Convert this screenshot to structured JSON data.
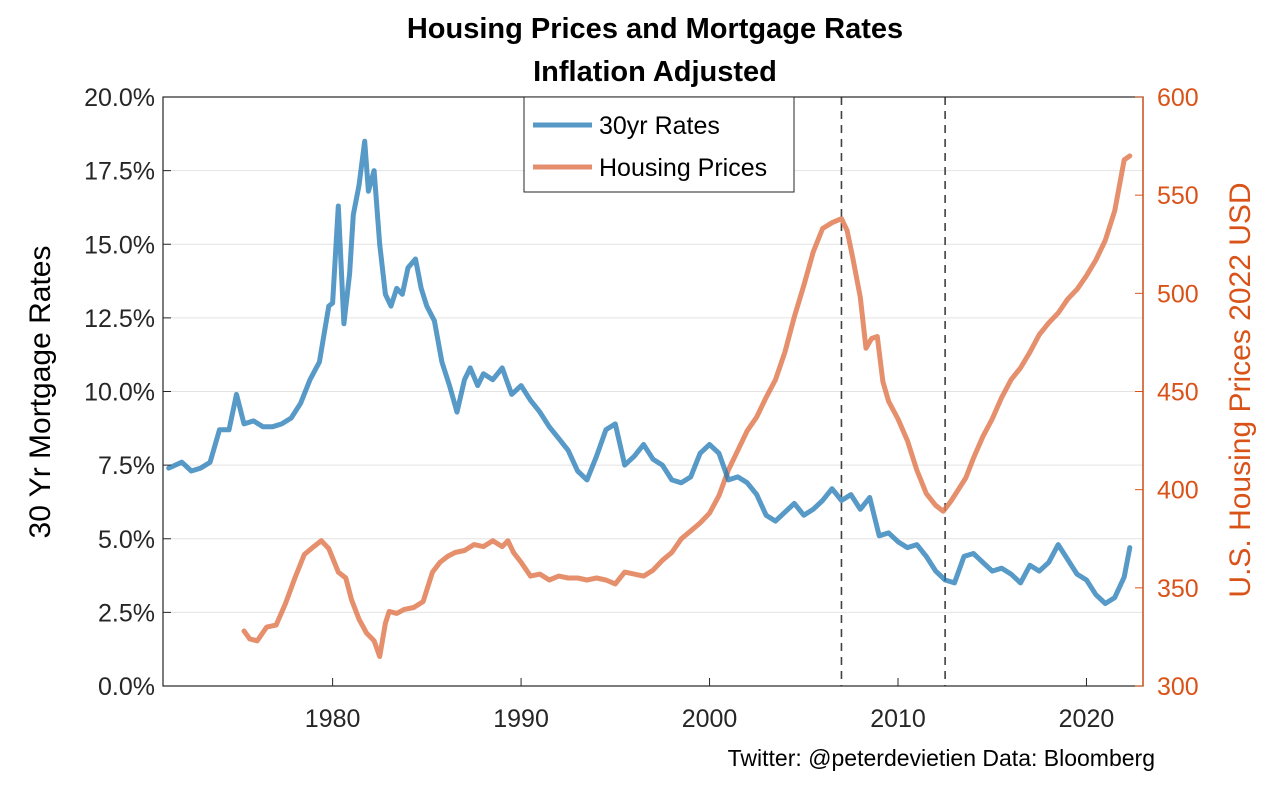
{
  "chart_data": {
    "type": "line",
    "title": "Housing Prices and Mortgage Rates",
    "subtitle": "Inflation Adjusted",
    "xlabel": "",
    "xlim": [
      1971,
      2023
    ],
    "xticks": [
      "1980",
      "1990",
      "2000",
      "2010",
      "2020"
    ],
    "ylabel_left": "30 Yr Mortgage Rates",
    "ylim_left": [
      0,
      20
    ],
    "yticks_left": [
      "0.0%",
      "2.5%",
      "5.0%",
      "7.5%",
      "10.0%",
      "12.5%",
      "15.0%",
      "17.5%",
      "20.0%"
    ],
    "ylabel_right": "U.S. Housing Prices 2022 USD",
    "ylim_right": [
      300,
      600
    ],
    "yticks_right": [
      "300",
      "350",
      "400",
      "450",
      "500",
      "550",
      "600"
    ],
    "grid": true,
    "legend": "top-center",
    "vlines": [
      2007,
      2012.5
    ],
    "colors": {
      "rates": "#1f77b4",
      "housing": "#e07b54",
      "right_axis": "#d95319"
    },
    "series": [
      {
        "name": "30yr Rates",
        "axis": "left",
        "x": [
          1971.3,
          1972.0,
          1972.5,
          1973.0,
          1973.5,
          1974.0,
          1974.5,
          1974.9,
          1975.3,
          1975.8,
          1976.3,
          1976.8,
          1977.3,
          1977.8,
          1978.3,
          1978.8,
          1979.3,
          1979.8,
          1980.0,
          1980.3,
          1980.6,
          1980.9,
          1981.1,
          1981.4,
          1981.7,
          1981.9,
          1982.2,
          1982.5,
          1982.8,
          1983.1,
          1983.4,
          1983.7,
          1984.0,
          1984.4,
          1984.7,
          1985.0,
          1985.4,
          1985.8,
          1986.2,
          1986.6,
          1987.0,
          1987.3,
          1987.7,
          1988.0,
          1988.5,
          1989.0,
          1989.5,
          1990.0,
          1990.5,
          1991.0,
          1991.5,
          1992.0,
          1992.5,
          1993.0,
          1993.5,
          1994.0,
          1994.5,
          1995.0,
          1995.5,
          1996.0,
          1996.5,
          1997.0,
          1997.5,
          1998.0,
          1998.5,
          1999.0,
          1999.5,
          2000.0,
          2000.5,
          2001.0,
          2001.5,
          2002.0,
          2002.5,
          2003.0,
          2003.5,
          2004.0,
          2004.5,
          2005.0,
          2005.5,
          2006.0,
          2006.5,
          2007.0,
          2007.5,
          2008.0,
          2008.5,
          2009.0,
          2009.5,
          2010.0,
          2010.5,
          2011.0,
          2011.5,
          2012.0,
          2012.5,
          2013.0,
          2013.5,
          2014.0,
          2014.5,
          2015.0,
          2015.5,
          2016.0,
          2016.5,
          2017.0,
          2017.5,
          2018.0,
          2018.5,
          2019.0,
          2019.5,
          2020.0,
          2020.5,
          2021.0,
          2021.5,
          2022.0,
          2022.3
        ],
        "values": [
          7.4,
          7.6,
          7.3,
          7.4,
          7.6,
          8.7,
          8.7,
          9.9,
          8.9,
          9.0,
          8.8,
          8.8,
          8.9,
          9.1,
          9.6,
          10.4,
          11.0,
          12.9,
          13.0,
          16.3,
          12.3,
          14.0,
          16.0,
          17.0,
          18.5,
          16.8,
          17.5,
          15.0,
          13.3,
          12.9,
          13.5,
          13.3,
          14.2,
          14.5,
          13.5,
          12.9,
          12.4,
          11.0,
          10.2,
          9.3,
          10.4,
          10.8,
          10.2,
          10.6,
          10.4,
          10.8,
          9.9,
          10.2,
          9.7,
          9.3,
          8.8,
          8.4,
          8.0,
          7.3,
          7.0,
          7.8,
          8.7,
          8.9,
          7.5,
          7.8,
          8.2,
          7.7,
          7.5,
          7.0,
          6.9,
          7.1,
          7.9,
          8.2,
          7.9,
          7.0,
          7.1,
          6.9,
          6.5,
          5.8,
          5.6,
          5.9,
          6.2,
          5.8,
          6.0,
          6.3,
          6.7,
          6.3,
          6.5,
          6.0,
          6.4,
          5.1,
          5.2,
          4.9,
          4.7,
          4.8,
          4.4,
          3.9,
          3.6,
          3.5,
          4.4,
          4.5,
          4.2,
          3.9,
          4.0,
          3.8,
          3.5,
          4.1,
          3.9,
          4.2,
          4.8,
          4.3,
          3.8,
          3.6,
          3.1,
          2.8,
          3.0,
          3.7,
          4.7
        ]
      },
      {
        "name": "Housing Prices",
        "axis": "right",
        "x": [
          1975.3,
          1975.6,
          1976.0,
          1976.5,
          1977.0,
          1977.5,
          1978.0,
          1978.5,
          1979.0,
          1979.4,
          1979.8,
          1980.3,
          1980.7,
          1981.0,
          1981.4,
          1981.8,
          1982.2,
          1982.5,
          1982.8,
          1983.0,
          1983.4,
          1983.8,
          1984.3,
          1984.8,
          1985.3,
          1985.7,
          1986.1,
          1986.5,
          1987.0,
          1987.5,
          1988.0,
          1988.5,
          1989.0,
          1989.3,
          1989.6,
          1990.0,
          1990.5,
          1991.0,
          1991.5,
          1992.0,
          1992.5,
          1993.0,
          1993.5,
          1994.0,
          1994.5,
          1995.0,
          1995.5,
          1996.0,
          1996.5,
          1997.0,
          1997.5,
          1998.0,
          1998.5,
          1999.0,
          1999.5,
          2000.0,
          2000.5,
          2001.0,
          2001.5,
          2002.0,
          2002.5,
          2003.0,
          2003.5,
          2004.0,
          2004.5,
          2005.0,
          2005.5,
          2006.0,
          2006.5,
          2007.0,
          2007.3,
          2007.6,
          2008.0,
          2008.3,
          2008.6,
          2008.9,
          2009.2,
          2009.5,
          2010.0,
          2010.5,
          2011.0,
          2011.5,
          2012.0,
          2012.4,
          2012.8,
          2013.2,
          2013.6,
          2014.0,
          2014.5,
          2015.0,
          2015.5,
          2016.0,
          2016.5,
          2017.0,
          2017.5,
          2018.0,
          2018.5,
          2019.0,
          2019.5,
          2020.0,
          2020.5,
          2021.0,
          2021.5,
          2022.0,
          2022.3
        ],
        "values": [
          328,
          324,
          323,
          330,
          331,
          342,
          355,
          367,
          371,
          374,
          370,
          358,
          355,
          344,
          334,
          327,
          323,
          315,
          332,
          338,
          337,
          339,
          340,
          343,
          358,
          363,
          366,
          368,
          369,
          372,
          371,
          374,
          371,
          374,
          368,
          363,
          356,
          357,
          354,
          356,
          355,
          355,
          354,
          355,
          354,
          352,
          358,
          357,
          356,
          359,
          364,
          368,
          375,
          379,
          383,
          388,
          397,
          410,
          420,
          430,
          437,
          447,
          456,
          470,
          488,
          504,
          521,
          533,
          536,
          538,
          532,
          518,
          498,
          472,
          477,
          478,
          455,
          445,
          436,
          425,
          410,
          398,
          392,
          389,
          394,
          400,
          406,
          416,
          427,
          436,
          447,
          456,
          462,
          470,
          479,
          485,
          490,
          497,
          502,
          509,
          517,
          527,
          542,
          568,
          570
        ]
      }
    ]
  },
  "footer": {
    "credit": "Twitter: @peterdevietien   Data: Bloomberg"
  }
}
